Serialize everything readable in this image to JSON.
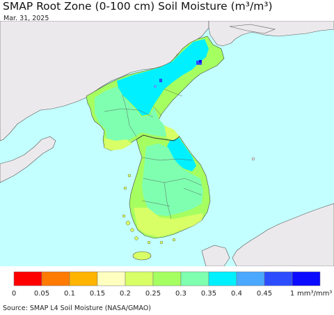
{
  "header": {
    "title": "SMAP Root Zone (0-100 cm) Soil Moisture (m³/m³)",
    "date": "Mar. 31, 2025"
  },
  "legend": {
    "bins": [
      {
        "color": "#ff0000"
      },
      {
        "color": "#ff7a00"
      },
      {
        "color": "#ffb400"
      },
      {
        "color": "#ffffbf"
      },
      {
        "color": "#d8ff66"
      },
      {
        "color": "#a6ff60"
      },
      {
        "color": "#7fffb0"
      },
      {
        "color": "#00f0ff"
      },
      {
        "color": "#4aa8ff"
      },
      {
        "color": "#2b4dff"
      },
      {
        "color": "#0b0bff"
      }
    ],
    "tick_labels": [
      "0",
      "0.05",
      "0.1",
      "0.15",
      "0.2",
      "0.25",
      "0.3",
      "0.35",
      "0.4",
      "0.45",
      "1"
    ],
    "unit": "mm³/mm³"
  },
  "footer": {
    "source": "Source: SMAP L4 Soil Moisture (NASA/GMAO)"
  },
  "colors": {
    "ocean": "#c4ffff",
    "foreign_land": "#ece9ec",
    "moist": "#00f0ff",
    "mid": "#7fffb0",
    "dry": "#d8ff66",
    "wet": "#2b4dff"
  }
}
